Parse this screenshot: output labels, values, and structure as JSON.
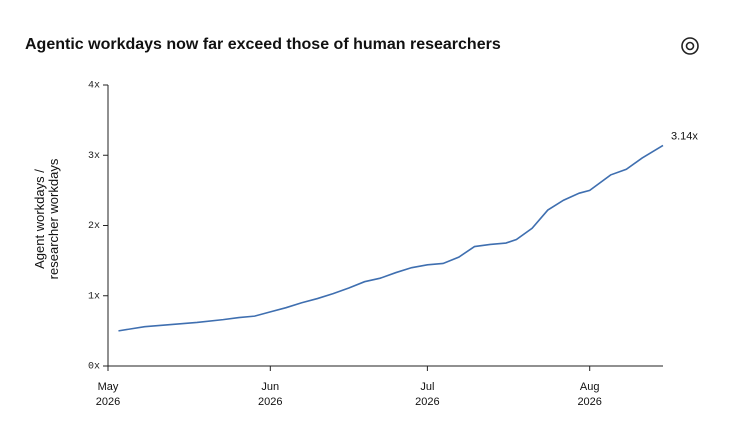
{
  "chart_data": {
    "type": "line",
    "title": "Agentic workdays now far exceed those of human researchers",
    "y_label": "Agent workdays / researcher workdays",
    "x": [
      "2026-05-03",
      "2026-05-08",
      "2026-05-13",
      "2026-05-18",
      "2026-05-23",
      "2026-05-26",
      "2026-05-29",
      "2026-06-01",
      "2026-06-04",
      "2026-06-07",
      "2026-06-10",
      "2026-06-13",
      "2026-06-16",
      "2026-06-19",
      "2026-06-22",
      "2026-06-25",
      "2026-06-28",
      "2026-07-01",
      "2026-07-04",
      "2026-07-07",
      "2026-07-10",
      "2026-07-13",
      "2026-07-16",
      "2026-07-18",
      "2026-07-21",
      "2026-07-24",
      "2026-07-27",
      "2026-07-30",
      "2026-08-01",
      "2026-08-05",
      "2026-08-08",
      "2026-08-11",
      "2026-08-15"
    ],
    "series": [
      {
        "color": "#3f6fb0",
        "values": [
          0.5,
          0.56,
          0.59,
          0.62,
          0.66,
          0.69,
          0.71,
          0.77,
          0.83,
          0.9,
          0.96,
          1.03,
          1.11,
          1.2,
          1.25,
          1.33,
          1.4,
          1.44,
          1.46,
          1.55,
          1.7,
          1.73,
          1.75,
          1.8,
          1.96,
          2.22,
          2.36,
          2.46,
          2.5,
          2.72,
          2.8,
          2.96,
          3.14
        ],
        "value_labels": [
          null,
          null,
          null,
          null,
          null,
          null,
          null,
          null,
          null,
          null,
          null,
          null,
          null,
          null,
          null,
          null,
          null,
          null,
          null,
          null,
          null,
          null,
          null,
          null,
          null,
          null,
          null,
          null,
          null,
          null,
          null,
          null,
          "3.14x"
        ]
      }
    ],
    "xlim": [
      "2026-05-01",
      "2026-08-15"
    ],
    "xticks": [
      {
        "value": "2026-05-01",
        "label": "May 2026"
      },
      {
        "value": "2026-06-01",
        "label": "Jun 2026"
      },
      {
        "value": "2026-07-01",
        "label": "Jul 2026"
      },
      {
        "value": "2026-08-01",
        "label": "Aug 2026"
      }
    ],
    "ylim": [
      0,
      4
    ],
    "yticks": [
      {
        "value": 0,
        "label": "0x"
      },
      {
        "value": 1,
        "label": "1x"
      },
      {
        "value": 2,
        "label": "2x"
      },
      {
        "value": 3,
        "label": "3x"
      },
      {
        "value": 4,
        "label": "4x"
      }
    ]
  }
}
